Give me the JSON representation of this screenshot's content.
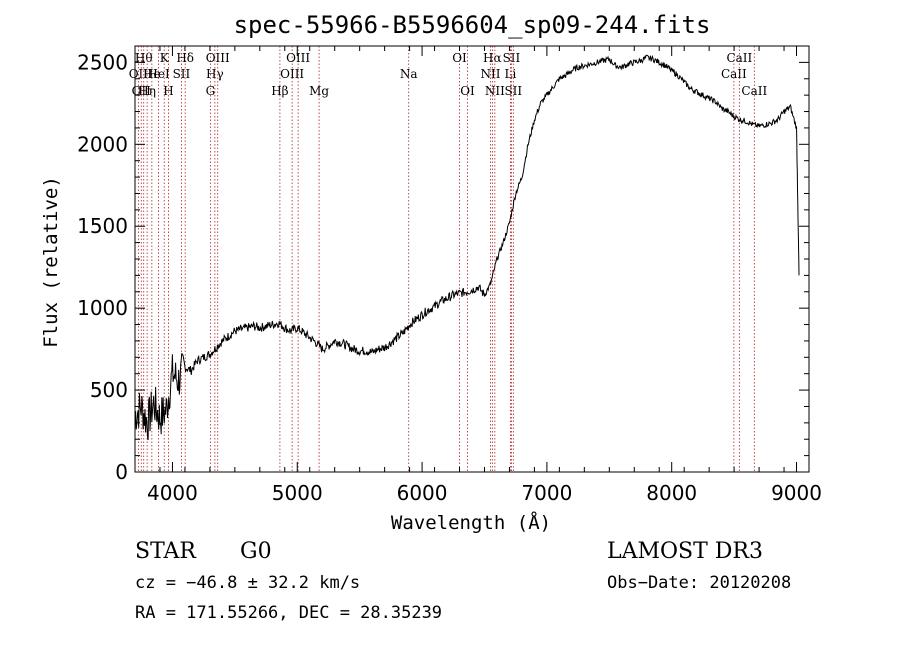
{
  "chart_data": {
    "type": "line",
    "title": "spec-55966-B5596604_sp09-244.fits",
    "xlabel": "Wavelength (Å)",
    "ylabel": "Flux (relative)",
    "xlim": [
      3700,
      9100
    ],
    "ylim": [
      0,
      2600
    ],
    "xticks": [
      4000,
      5000,
      6000,
      7000,
      8000,
      9000
    ],
    "yticks": [
      0,
      500,
      1000,
      1500,
      2000,
      2500
    ],
    "series": [
      {
        "name": "flux",
        "x": [
          3700,
          3750,
          3800,
          3850,
          3900,
          3950,
          4000,
          4050,
          4100,
          4150,
          4200,
          4250,
          4300,
          4350,
          4400,
          4450,
          4500,
          4550,
          4600,
          4650,
          4700,
          4750,
          4800,
          4850,
          4900,
          4950,
          5000,
          5050,
          5100,
          5150,
          5200,
          5250,
          5300,
          5350,
          5400,
          5450,
          5500,
          5550,
          5600,
          5650,
          5700,
          5750,
          5800,
          5850,
          5900,
          5950,
          6000,
          6050,
          6100,
          6150,
          6200,
          6250,
          6300,
          6350,
          6400,
          6450,
          6500,
          6550,
          6600,
          6650,
          6700,
          6750,
          6800,
          6850,
          6900,
          6950,
          7000,
          7050,
          7100,
          7150,
          7200,
          7250,
          7300,
          7350,
          7400,
          7450,
          7500,
          7550,
          7600,
          7650,
          7700,
          7750,
          7800,
          7850,
          7900,
          7950,
          8000,
          8050,
          8100,
          8150,
          8200,
          8250,
          8300,
          8350,
          8400,
          8450,
          8500,
          8550,
          8600,
          8650,
          8700,
          8750,
          8800,
          8850,
          8900,
          8950,
          9000,
          9020
        ],
        "y": [
          350,
          400,
          300,
          420,
          330,
          380,
          600,
          560,
          640,
          620,
          680,
          700,
          720,
          760,
          800,
          830,
          860,
          870,
          880,
          890,
          880,
          890,
          900,
          910,
          880,
          860,
          880,
          850,
          820,
          790,
          750,
          770,
          800,
          790,
          770,
          750,
          740,
          740,
          730,
          750,
          760,
          790,
          820,
          850,
          900,
          930,
          960,
          990,
          1010,
          1040,
          1060,
          1080,
          1090,
          1100,
          1110,
          1130,
          1080,
          1150,
          1300,
          1400,
          1520,
          1700,
          1800,
          2000,
          2150,
          2250,
          2300,
          2350,
          2400,
          2420,
          2450,
          2470,
          2480,
          2490,
          2500,
          2510,
          2520,
          2480,
          2470,
          2490,
          2500,
          2510,
          2530,
          2520,
          2500,
          2480,
          2450,
          2420,
          2380,
          2340,
          2320,
          2300,
          2280,
          2260,
          2220,
          2200,
          2170,
          2150,
          2140,
          2120,
          2110,
          2120,
          2130,
          2150,
          2200,
          2230,
          2100,
          1200
        ]
      }
    ],
    "lines": [
      {
        "wl": 3727,
        "label": "OII",
        "row": 2
      },
      {
        "wl": 3750,
        "label": "OII",
        "row": 3
      },
      {
        "wl": 3770,
        "label": "Hθ",
        "row": 1
      },
      {
        "wl": 3797,
        "label": "Hη",
        "row": 3
      },
      {
        "wl": 3835,
        "label": "He",
        "row": 2
      },
      {
        "wl": 3889,
        "label": "HeI",
        "row": 2
      },
      {
        "wl": 3934,
        "label": "K",
        "row": 1
      },
      {
        "wl": 3968,
        "label": "H",
        "row": 3
      },
      {
        "wl": 4072,
        "label": "SII",
        "row": 2
      },
      {
        "wl": 4102,
        "label": "Hδ",
        "row": 1
      },
      {
        "wl": 4304,
        "label": "G",
        "row": 3
      },
      {
        "wl": 4340,
        "label": "Hγ",
        "row": 2
      },
      {
        "wl": 4363,
        "label": "OIII",
        "row": 1
      },
      {
        "wl": 4861,
        "label": "Hβ",
        "row": 3
      },
      {
        "wl": 4959,
        "label": "OIII",
        "row": 2
      },
      {
        "wl": 5007,
        "label": "OIII",
        "row": 1
      },
      {
        "wl": 5175,
        "label": "Mg",
        "row": 3
      },
      {
        "wl": 5893,
        "label": "Na",
        "row": 2
      },
      {
        "wl": 6300,
        "label": "OI",
        "row": 1
      },
      {
        "wl": 6364,
        "label": "OI",
        "row": 3
      },
      {
        "wl": 6548,
        "label": "NII",
        "row": 2
      },
      {
        "wl": 6563,
        "label": "Hα",
        "row": 1
      },
      {
        "wl": 6583,
        "label": "NII",
        "row": 3
      },
      {
        "wl": 6708,
        "label": "Li",
        "row": 2
      },
      {
        "wl": 6716,
        "label": "SII",
        "row": 1
      },
      {
        "wl": 6731,
        "label": "SII",
        "row": 3
      },
      {
        "wl": 8498,
        "label": "CaII",
        "row": 2
      },
      {
        "wl": 8542,
        "label": "CaII",
        "row": 1
      },
      {
        "wl": 8662,
        "label": "CaII",
        "row": 3
      }
    ]
  },
  "info": {
    "class": "STAR",
    "subclass": "G0",
    "survey": "LAMOST DR3",
    "cz": "cz = −46.8 ± 32.2 km/s",
    "obs_date": "Obs−Date: 20120208",
    "radec": "RA = 171.55266, DEC =  28.35239"
  }
}
